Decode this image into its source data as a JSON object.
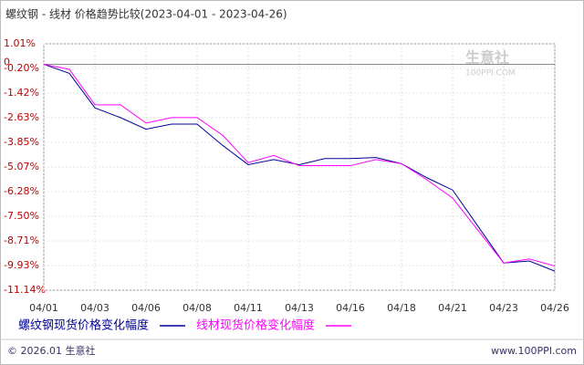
{
  "chart_data": {
    "type": "line",
    "title": "螺纹钢 - 线材 价格趋势比较(2023-04-01 - 2023-04-26)",
    "categories": [
      "04/01",
      null,
      "04/03",
      null,
      "04/06",
      null,
      "04/08",
      null,
      "04/11",
      null,
      "04/13",
      null,
      "04/16",
      null,
      "04/18",
      null,
      "04/21",
      null,
      "04/23",
      null,
      "04/26"
    ],
    "series": [
      {
        "name": "螺纹钢现货价格变化幅度",
        "color": "#000099",
        "values": [
          0,
          -0.45,
          -2.15,
          -2.63,
          -3.2,
          -2.95,
          -2.95,
          -4.0,
          -4.95,
          -4.7,
          -4.95,
          -4.65,
          -4.65,
          -4.6,
          -4.9,
          -5.6,
          -6.2,
          -8.0,
          -9.8,
          -9.7,
          -10.2
        ]
      },
      {
        "name": "线材现货价格变化幅度",
        "color": "#ff00ff",
        "values": [
          0,
          -0.25,
          -2.0,
          -2.0,
          -2.9,
          -2.63,
          -2.63,
          -3.5,
          -4.85,
          -4.5,
          -5.0,
          -5.0,
          -5.0,
          -4.7,
          -4.9,
          -5.7,
          -6.6,
          -8.2,
          -9.8,
          -9.6,
          -9.95
        ]
      }
    ],
    "ylim": [
      -11.14,
      1.01
    ],
    "yticks": [
      {
        "value": 1.01,
        "label": "1.01%"
      },
      0,
      {
        "value": -0.2,
        "label": "-0.20%"
      },
      {
        "value": -1.42,
        "label": "-1.42%"
      },
      {
        "value": -2.63,
        "label": "-2.63%"
      },
      {
        "value": -3.85,
        "label": "-3.85%"
      },
      {
        "value": -5.07,
        "label": "-5.07%"
      },
      {
        "value": -6.28,
        "label": "-6.28%"
      },
      {
        "value": -7.5,
        "label": "-7.50%"
      },
      {
        "value": -8.71,
        "label": "-8.71%"
      },
      {
        "value": -9.93,
        "label": "-9.93%"
      },
      {
        "value": -11.14,
        "label": "-11.14%"
      }
    ],
    "grid": true,
    "watermark": "生意社",
    "watermark_sub": "100PPI.COM",
    "footer_left": "© 2026.01 生意社",
    "footer_right": "www.100PPI.com"
  }
}
